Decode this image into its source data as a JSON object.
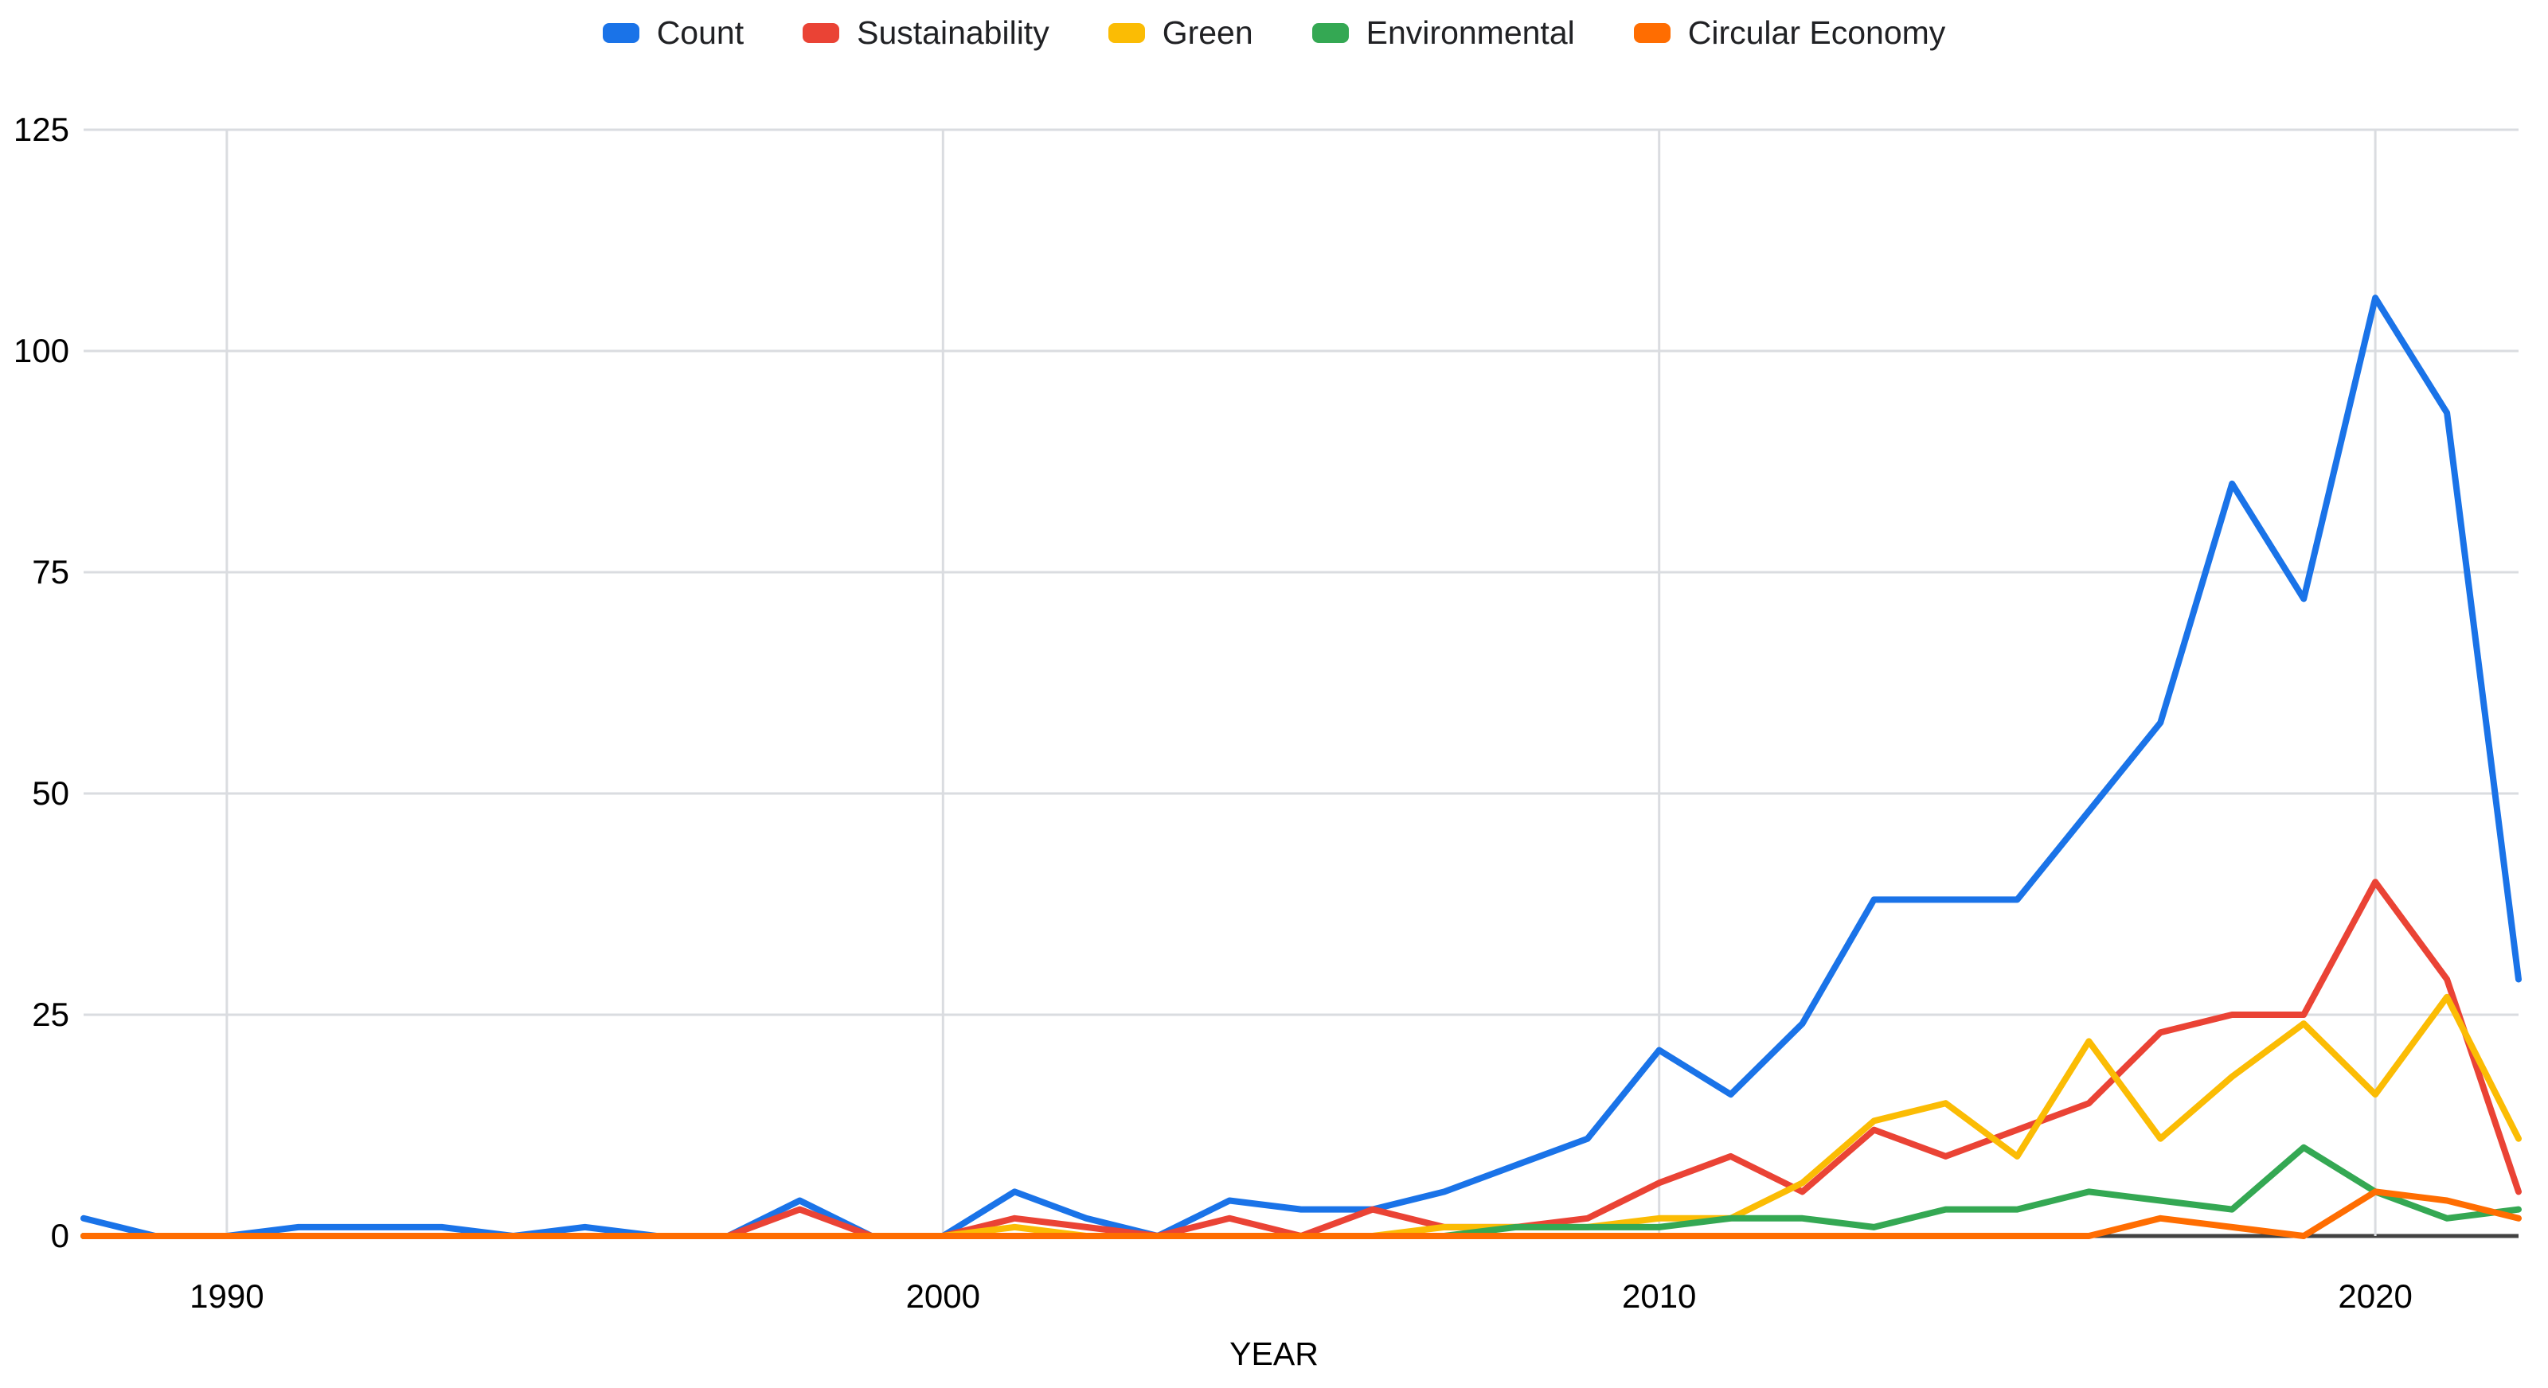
{
  "chart_data": {
    "type": "line",
    "title": "",
    "xlabel": "YEAR",
    "ylabel": "",
    "x_range": [
      1988,
      2022
    ],
    "ylim": [
      0,
      125
    ],
    "yticks": [
      0,
      25,
      50,
      75,
      100,
      125
    ],
    "xticks": [
      1990,
      2000,
      2010,
      2020
    ],
    "grid": true,
    "legend_position": "top-center",
    "x": [
      1988,
      1989,
      1990,
      1991,
      1992,
      1993,
      1994,
      1995,
      1996,
      1997,
      1998,
      1999,
      2000,
      2001,
      2002,
      2003,
      2004,
      2005,
      2006,
      2007,
      2008,
      2009,
      2010,
      2011,
      2012,
      2013,
      2014,
      2015,
      2016,
      2017,
      2018,
      2019,
      2020,
      2021,
      2022
    ],
    "series": [
      {
        "name": "Count",
        "color": "#1a73e8",
        "values": [
          2,
          0,
          0,
          1,
          1,
          1,
          0,
          1,
          0,
          0,
          4,
          0,
          0,
          5,
          2,
          0,
          4,
          3,
          3,
          5,
          8,
          11,
          21,
          16,
          24,
          38,
          38,
          38,
          48,
          58,
          85,
          72,
          106,
          93,
          29
        ]
      },
      {
        "name": "Sustainability",
        "color": "#ea4335",
        "values": [
          0,
          0,
          0,
          0,
          0,
          0,
          0,
          0,
          0,
          0,
          3,
          0,
          0,
          2,
          1,
          0,
          2,
          0,
          3,
          1,
          1,
          2,
          6,
          9,
          5,
          12,
          9,
          12,
          15,
          23,
          25,
          25,
          40,
          29,
          5
        ]
      },
      {
        "name": "Green",
        "color": "#fbbc04",
        "values": [
          0,
          0,
          0,
          0,
          0,
          0,
          0,
          0,
          0,
          0,
          0,
          0,
          0,
          1,
          0,
          0,
          0,
          0,
          0,
          1,
          1,
          1,
          2,
          2,
          6,
          13,
          15,
          9,
          22,
          11,
          18,
          24,
          16,
          27,
          11
        ]
      },
      {
        "name": "Environmental",
        "color": "#34a853",
        "values": [
          0,
          0,
          0,
          0,
          0,
          0,
          0,
          0,
          0,
          0,
          0,
          0,
          0,
          0,
          0,
          0,
          0,
          0,
          0,
          0,
          1,
          1,
          1,
          2,
          2,
          1,
          3,
          3,
          5,
          4,
          3,
          10,
          5,
          2,
          3
        ]
      },
      {
        "name": "Circular Economy",
        "color": "#ff6d01",
        "values": [
          0,
          0,
          0,
          0,
          0,
          0,
          0,
          0,
          0,
          0,
          0,
          0,
          0,
          0,
          0,
          0,
          0,
          0,
          0,
          0,
          0,
          0,
          0,
          0,
          0,
          0,
          0,
          0,
          0,
          2,
          1,
          0,
          5,
          4,
          2
        ]
      }
    ],
    "colors": {
      "gridline": "#dadce0",
      "axis_line": "#424242",
      "tick_text": "#000000",
      "legend_text": "#202124",
      "background": "#ffffff"
    }
  }
}
